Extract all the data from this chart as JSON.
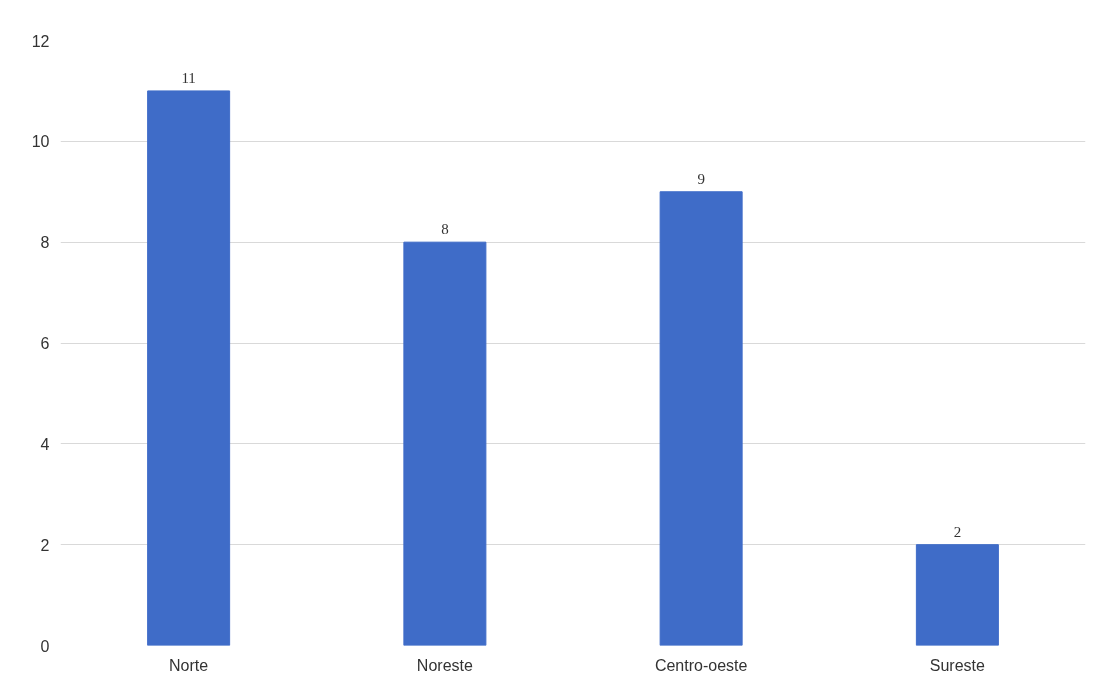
{
  "chart_data": {
    "type": "bar",
    "categories": [
      "Norte",
      "Noreste",
      "Centro-oeste",
      "Sureste"
    ],
    "values": [
      11,
      8,
      9,
      2
    ],
    "color": "#3f6cc8",
    "ylim": [
      0,
      12
    ],
    "yticks": [
      0,
      2,
      4,
      6,
      8,
      10,
      12
    ],
    "grid": "y",
    "data_labels": true
  }
}
